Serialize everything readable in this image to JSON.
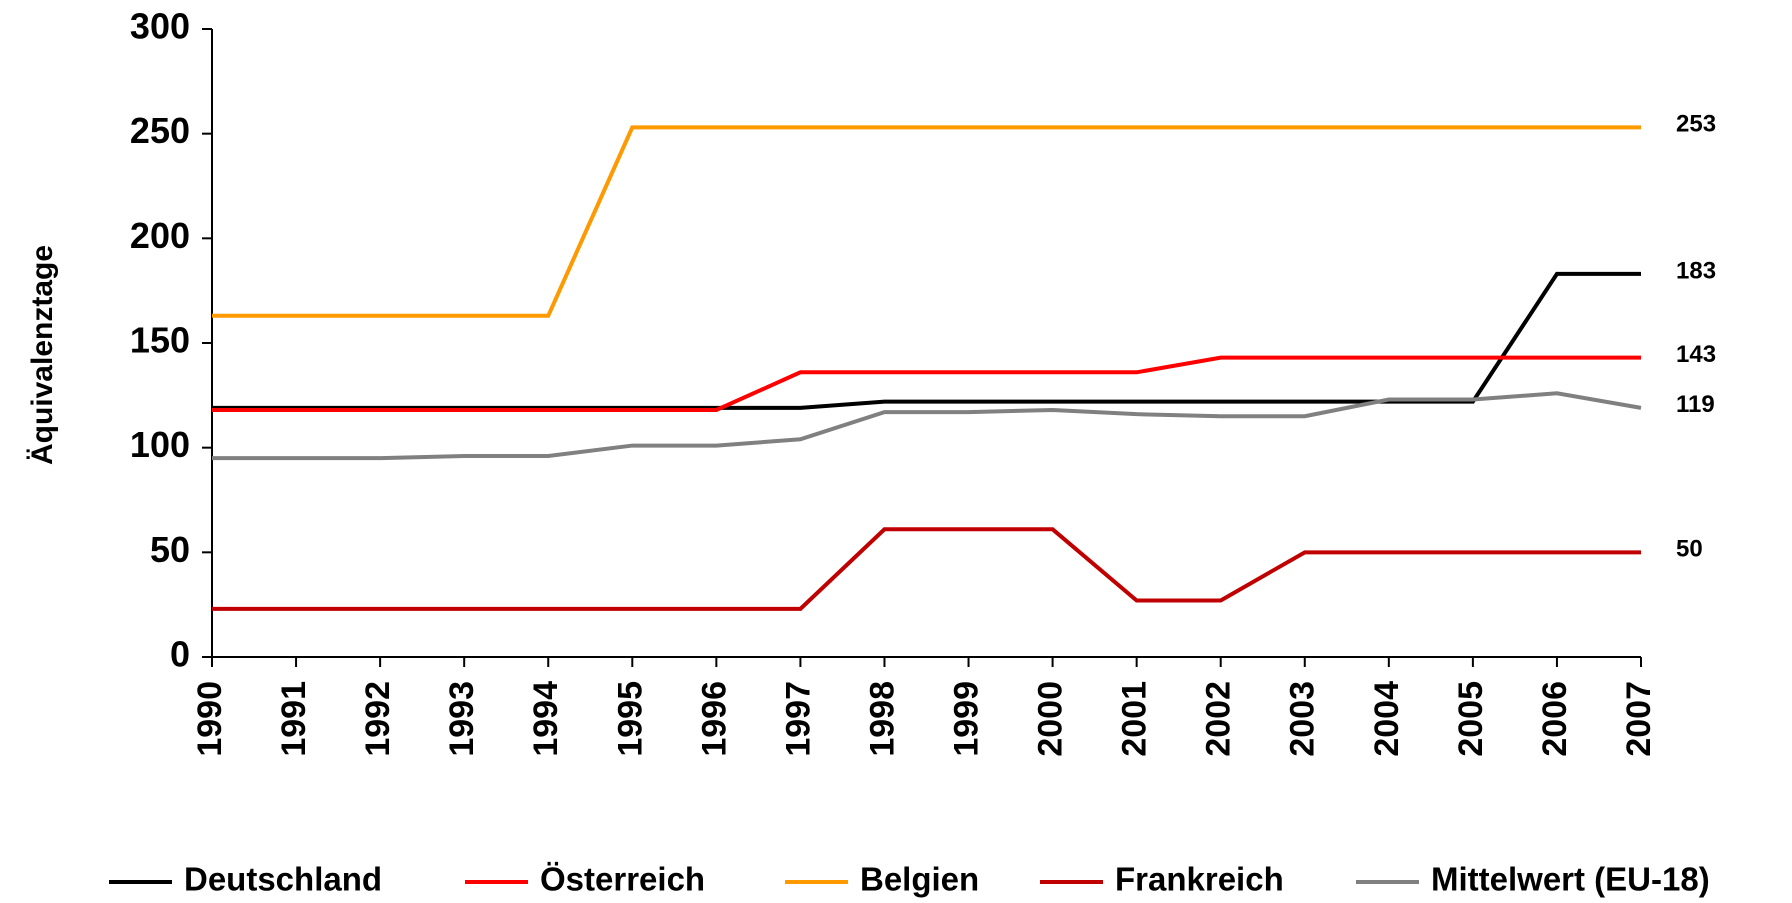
{
  "chart_data": {
    "type": "line",
    "y_label": "Äquivalenztage",
    "categories": [
      "1990",
      "1991",
      "1992",
      "1993",
      "1994",
      "1995",
      "1996",
      "1997",
      "1998",
      "1999",
      "2000",
      "2001",
      "2002",
      "2003",
      "2004",
      "2005",
      "2006",
      "2007"
    ],
    "series": [
      {
        "name": "Deutschland",
        "color": "#000000",
        "values": [
          119,
          119,
          119,
          119,
          119,
          119,
          119,
          119,
          122,
          122,
          122,
          122,
          122,
          122,
          122,
          122,
          183,
          183
        ]
      },
      {
        "name": "Österreich",
        "color": "#ff0000",
        "values": [
          118,
          118,
          118,
          118,
          118,
          118,
          118,
          136,
          136,
          136,
          136,
          136,
          143,
          143,
          143,
          143,
          143,
          143
        ]
      },
      {
        "name": "Belgien",
        "color": "#ff9900",
        "values": [
          163,
          163,
          163,
          163,
          163,
          253,
          253,
          253,
          253,
          253,
          253,
          253,
          253,
          253,
          253,
          253,
          253,
          253
        ]
      },
      {
        "name": "Frankreich",
        "color": "#c00000",
        "values": [
          23,
          23,
          23,
          23,
          23,
          23,
          23,
          23,
          61,
          61,
          61,
          27,
          27,
          50,
          50,
          50,
          50,
          50
        ]
      },
      {
        "name": "Mittelwert (EU-18)",
        "color": "#808080",
        "values": [
          95,
          95,
          95,
          96,
          96,
          101,
          101,
          104,
          117,
          117,
          118,
          116,
          115,
          115,
          123,
          123,
          126,
          119
        ]
      }
    ],
    "ylim": [
      0,
      300
    ],
    "yticks": [
      0,
      50,
      100,
      150,
      200,
      250,
      300
    ],
    "grid": false
  }
}
